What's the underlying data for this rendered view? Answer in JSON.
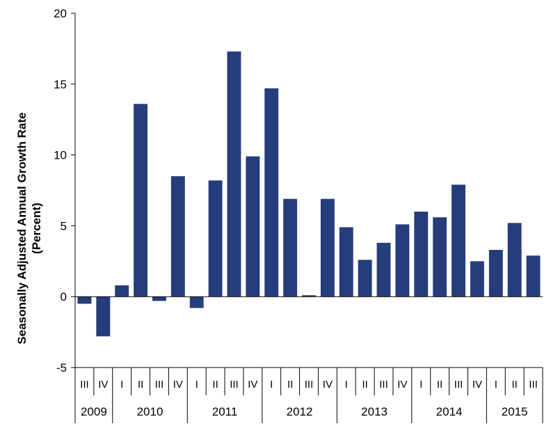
{
  "chart_data": {
    "type": "bar",
    "ylabel_line1": "Seasonally Adjusted Annual Growth Rate",
    "ylabel_line2": "(Percent)",
    "xlabel": "",
    "ylim": [
      -5,
      20
    ],
    "yticks": [
      "-5",
      "0",
      "5",
      "10",
      "15",
      "20"
    ],
    "ytick_values": [
      -5,
      0,
      5,
      10,
      15,
      20
    ],
    "bar_color": "#253d7a",
    "categories": [
      "III",
      "IV",
      "I",
      "II",
      "III",
      "IV",
      "I",
      "II",
      "III",
      "IV",
      "I",
      "II",
      "III",
      "IV",
      "I",
      "II",
      "III",
      "IV",
      "I",
      "II",
      "III",
      "IV",
      "I",
      "II",
      "III"
    ],
    "values": [
      -0.5,
      -2.8,
      0.8,
      13.6,
      -0.3,
      8.5,
      -0.8,
      8.2,
      17.3,
      9.9,
      14.7,
      6.9,
      0.1,
      6.9,
      4.9,
      2.6,
      3.8,
      5.1,
      6.0,
      5.6,
      7.9,
      2.5,
      3.3,
      5.2,
      2.9
    ],
    "years": [
      {
        "label": "2009",
        "start": 0,
        "count": 2
      },
      {
        "label": "2010",
        "start": 2,
        "count": 4
      },
      {
        "label": "2011",
        "start": 6,
        "count": 4
      },
      {
        "label": "2012",
        "start": 10,
        "count": 4
      },
      {
        "label": "2013",
        "start": 14,
        "count": 4
      },
      {
        "label": "2014",
        "start": 18,
        "count": 4
      },
      {
        "label": "2015",
        "start": 22,
        "count": 3
      }
    ],
    "grid": false,
    "legend": "none"
  }
}
